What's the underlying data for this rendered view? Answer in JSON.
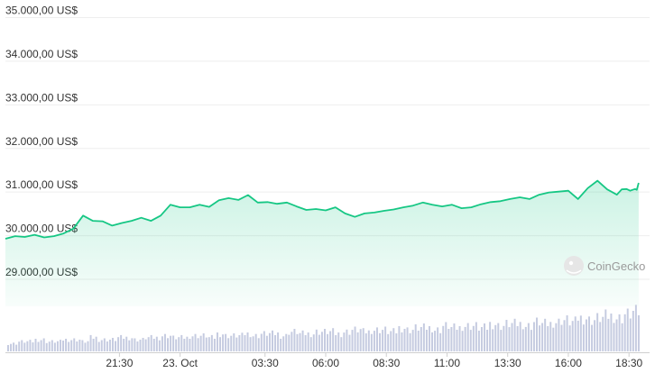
{
  "chart_data": {
    "type": "area",
    "currency_format": "US$",
    "ylim": [
      28800,
      35000
    ],
    "y_ticks": [
      {
        "value": 35000,
        "label": "35.000,00 US$"
      },
      {
        "value": 34000,
        "label": "34.000,00 US$"
      },
      {
        "value": 33000,
        "label": "33.000,00 US$"
      },
      {
        "value": 32000,
        "label": "32.000,00 US$"
      },
      {
        "value": 31000,
        "label": "31.000,00 US$"
      },
      {
        "value": 30000,
        "label": "30.000,00 US$"
      },
      {
        "value": 29000,
        "label": "29.000,00 US$"
      }
    ],
    "x_ticks": [
      {
        "t": 2.5,
        "label": "21:30"
      },
      {
        "t": 5.0,
        "label": "23. Oct"
      },
      {
        "t": 8.5,
        "label": "03:30"
      },
      {
        "t": 11.0,
        "label": "06:00"
      },
      {
        "t": 13.5,
        "label": "08:30"
      },
      {
        "t": 16.0,
        "label": "11:00"
      },
      {
        "t": 18.5,
        "label": "13:30"
      },
      {
        "t": 21.0,
        "label": "16:00"
      },
      {
        "t": 23.5,
        "label": "18:30"
      }
    ],
    "xlim": [
      -2.2,
      24.2
    ],
    "grid": true,
    "series": [
      {
        "color": "#16c784",
        "x": [
          -2.2,
          -1.8,
          -1.4,
          -1.0,
          -0.6,
          -0.2,
          0.2,
          0.6,
          1.0,
          1.4,
          1.8,
          2.2,
          2.6,
          3.0,
          3.4,
          3.8,
          4.2,
          4.6,
          5.0,
          5.4,
          5.8,
          6.2,
          6.6,
          7.0,
          7.4,
          7.8,
          8.2,
          8.6,
          9.0,
          9.4,
          9.8,
          10.2,
          10.6,
          11.0,
          11.4,
          11.8,
          12.2,
          12.6,
          13.0,
          13.4,
          13.8,
          14.2,
          14.6,
          15.0,
          15.4,
          15.8,
          16.2,
          16.6,
          17.0,
          17.4,
          17.8,
          18.2,
          18.6,
          19.0,
          19.4,
          19.8,
          20.2,
          20.6,
          21.0,
          21.4,
          21.8,
          22.2,
          22.6,
          23.0,
          23.2,
          23.4,
          23.55,
          23.65,
          23.75,
          23.82,
          23.9
        ],
        "y": [
          29920,
          29980,
          29960,
          30010,
          29950,
          29980,
          30040,
          30150,
          30450,
          30330,
          30320,
          30220,
          30280,
          30330,
          30400,
          30330,
          30450,
          30700,
          30640,
          30640,
          30700,
          30650,
          30800,
          30850,
          30810,
          30920,
          30750,
          30760,
          30720,
          30750,
          30660,
          30580,
          30600,
          30570,
          30640,
          30500,
          30420,
          30500,
          30520,
          30560,
          30590,
          30640,
          30680,
          30750,
          30700,
          30660,
          30700,
          30620,
          30640,
          30710,
          30760,
          30780,
          30830,
          30870,
          30830,
          30930,
          30980,
          31000,
          31020,
          30830,
          31080,
          31250,
          31050,
          30930,
          31050,
          31060,
          31020,
          31040,
          31060,
          31040,
          31200
        ]
      }
    ],
    "volume": [
      4,
      5,
      5,
      6,
      5,
      5,
      6,
      6,
      5,
      7,
      6,
      6,
      7,
      7,
      6,
      7,
      7,
      8,
      7,
      7,
      8,
      8,
      7,
      9,
      8,
      8,
      9,
      8,
      9,
      9,
      8,
      10,
      9,
      9,
      10,
      10,
      9,
      10,
      11,
      10,
      11,
      11,
      10,
      12,
      11,
      12,
      12,
      11,
      13,
      12,
      13,
      13,
      12,
      14,
      13,
      14,
      14,
      13,
      15,
      14,
      15,
      16,
      15,
      17,
      16,
      17,
      18,
      17,
      19,
      20
    ]
  },
  "watermark": {
    "text": "CoinGecko"
  }
}
